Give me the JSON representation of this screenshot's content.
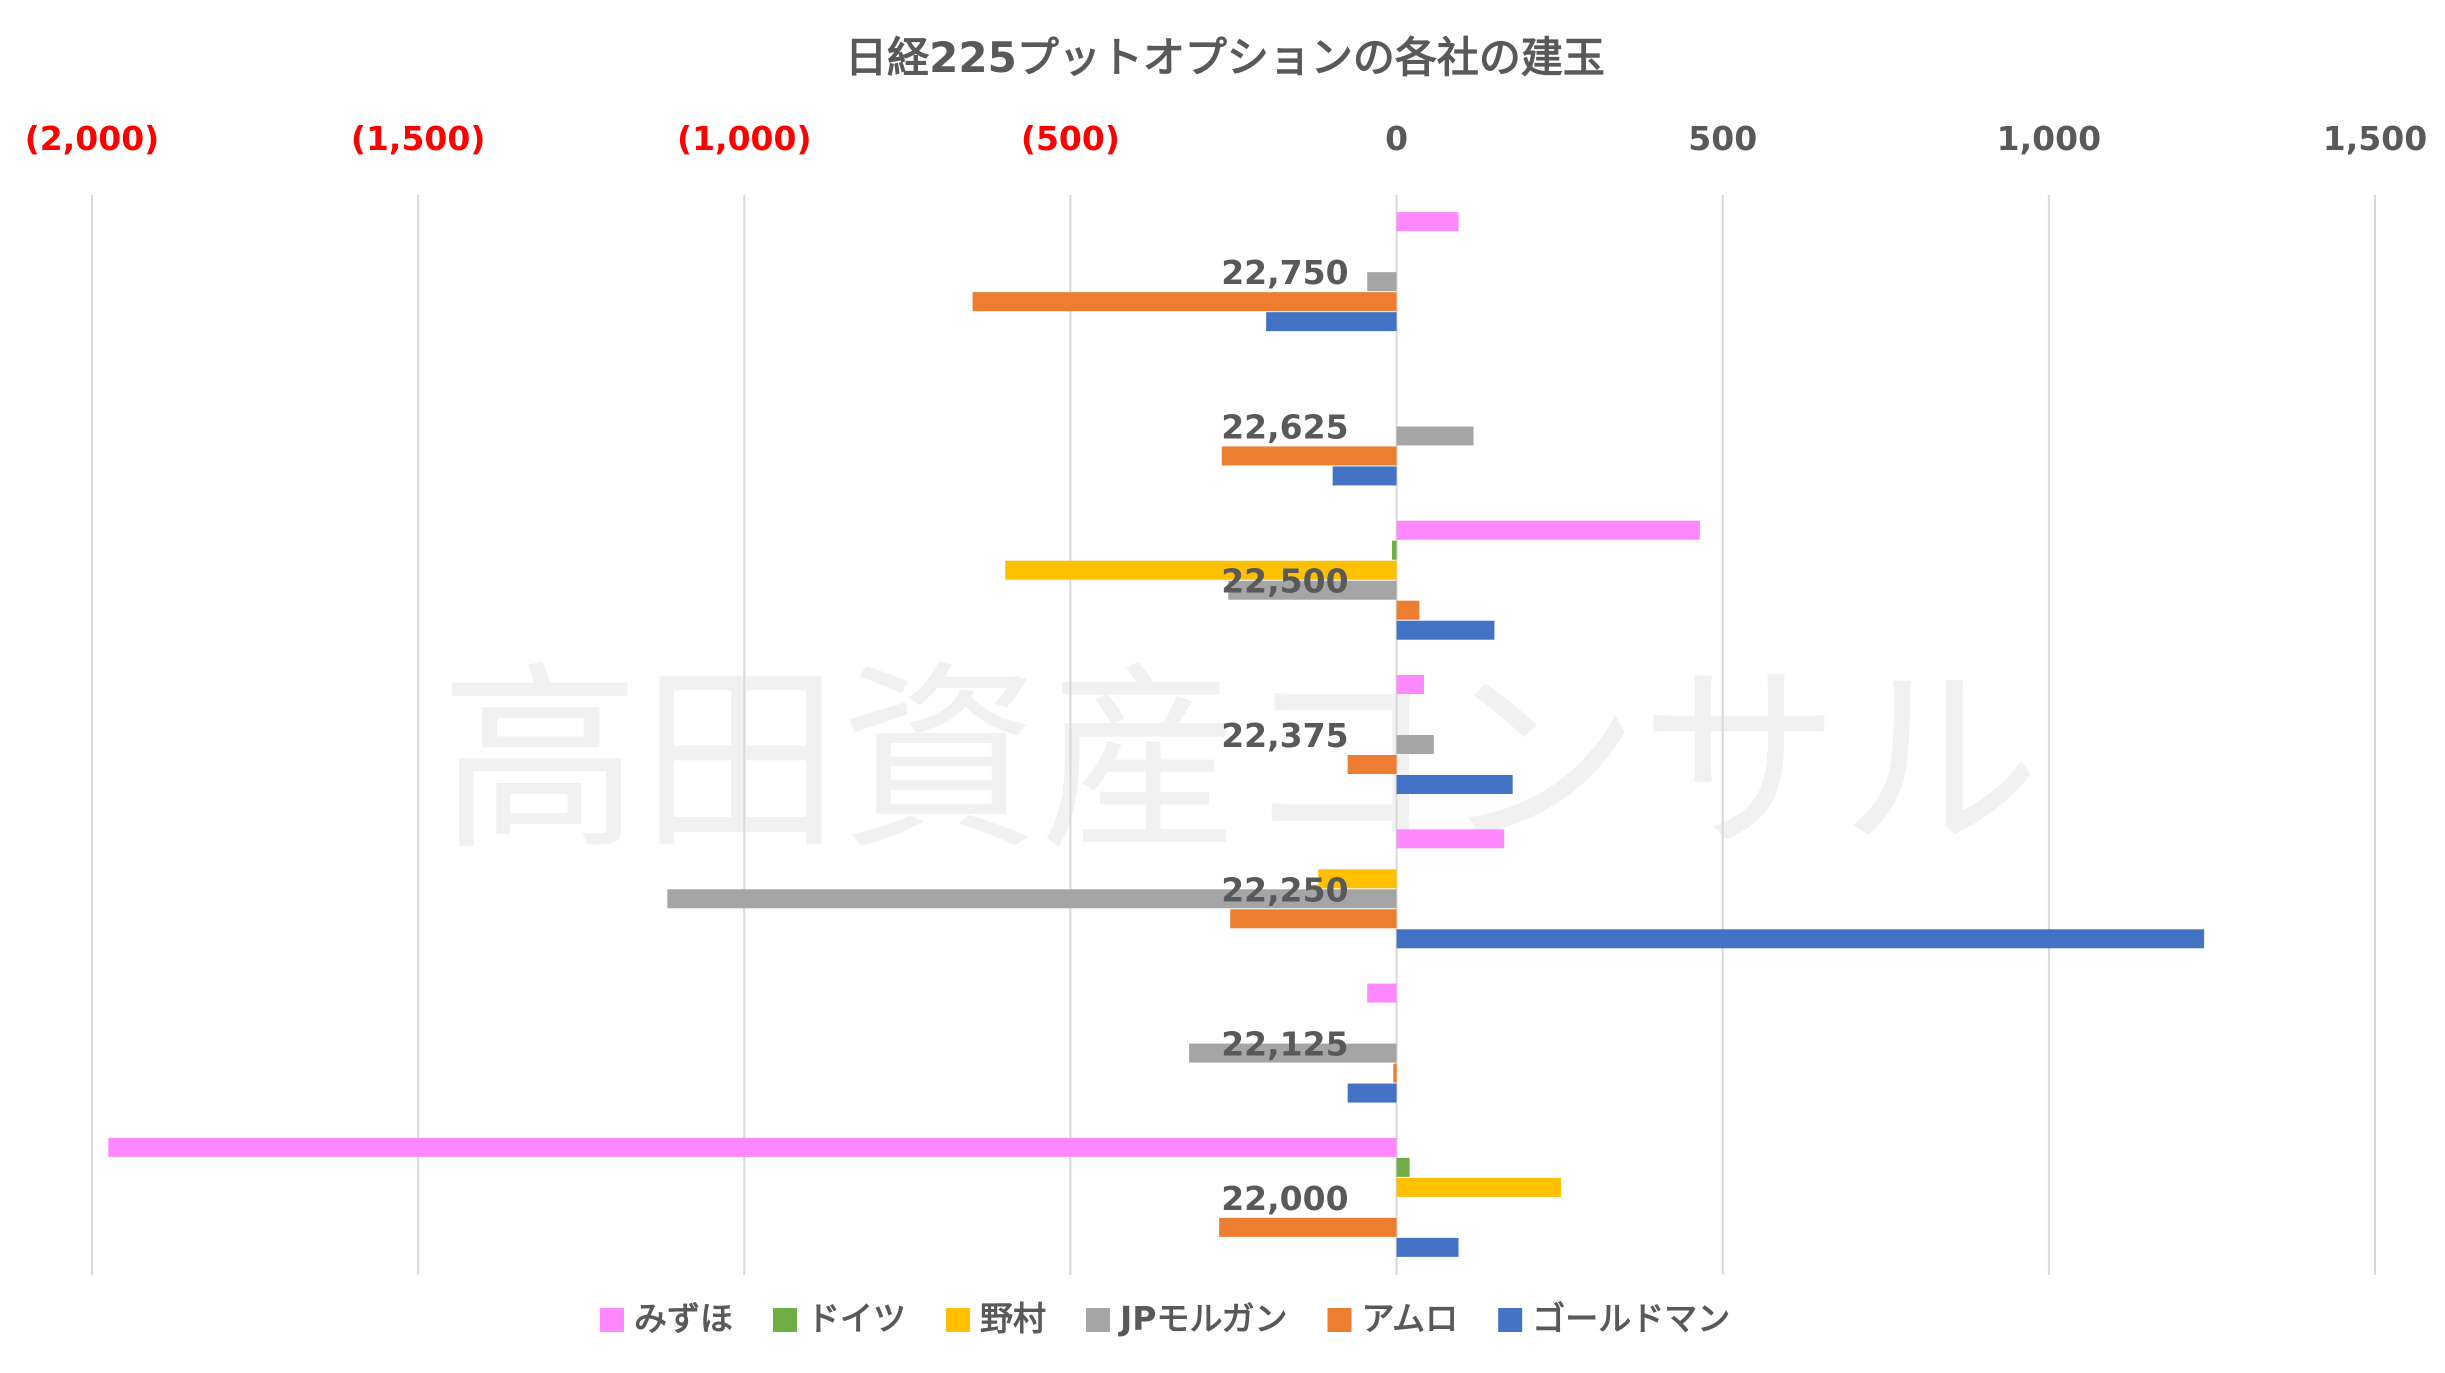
{
  "chart_data": {
    "type": "bar",
    "orientation": "horizontal",
    "title": "日経225プットオプションの各社の建玉",
    "watermark": "高田資産コンサル",
    "xlim": [
      -2000,
      1500
    ],
    "x_ticks": [
      -2000,
      -1500,
      -1000,
      -500,
      0,
      500,
      1000,
      1500
    ],
    "x_tick_labels": [
      "(2,000)",
      "(1,500)",
      "(1,000)",
      "(500)",
      "0",
      "500",
      "1,000",
      "1,500"
    ],
    "negative_tick_color": "#ff0000",
    "positive_tick_color": "#595959",
    "axis_position": "top",
    "grid": true,
    "legend_position": "bottom",
    "categories": [
      "22,750",
      "22,625",
      "22,500",
      "22,375",
      "22,250",
      "22,125",
      "22,000"
    ],
    "series": [
      {
        "name": "みずほ",
        "color": "#ff88ff",
        "values": [
          95,
          0,
          465,
          42,
          165,
          -45,
          -1975
        ]
      },
      {
        "name": "ドイツ",
        "color": "#70ad47",
        "values": [
          0,
          0,
          -7,
          0,
          0,
          0,
          20
        ]
      },
      {
        "name": "野村",
        "color": "#ffc000",
        "values": [
          0,
          0,
          -600,
          0,
          -120,
          0,
          252
        ]
      },
      {
        "name": "JPモルガン",
        "color": "#a5a5a5",
        "values": [
          -45,
          118,
          -258,
          57,
          -1118,
          -318,
          0
        ]
      },
      {
        "name": "アムロ",
        "color": "#ed7d31",
        "values": [
          -650,
          -268,
          35,
          -75,
          -255,
          -5,
          -272
        ]
      },
      {
        "name": "ゴールドマン",
        "color": "#4472c4",
        "values": [
          -200,
          -98,
          150,
          178,
          1238,
          -75,
          95
        ]
      }
    ]
  }
}
